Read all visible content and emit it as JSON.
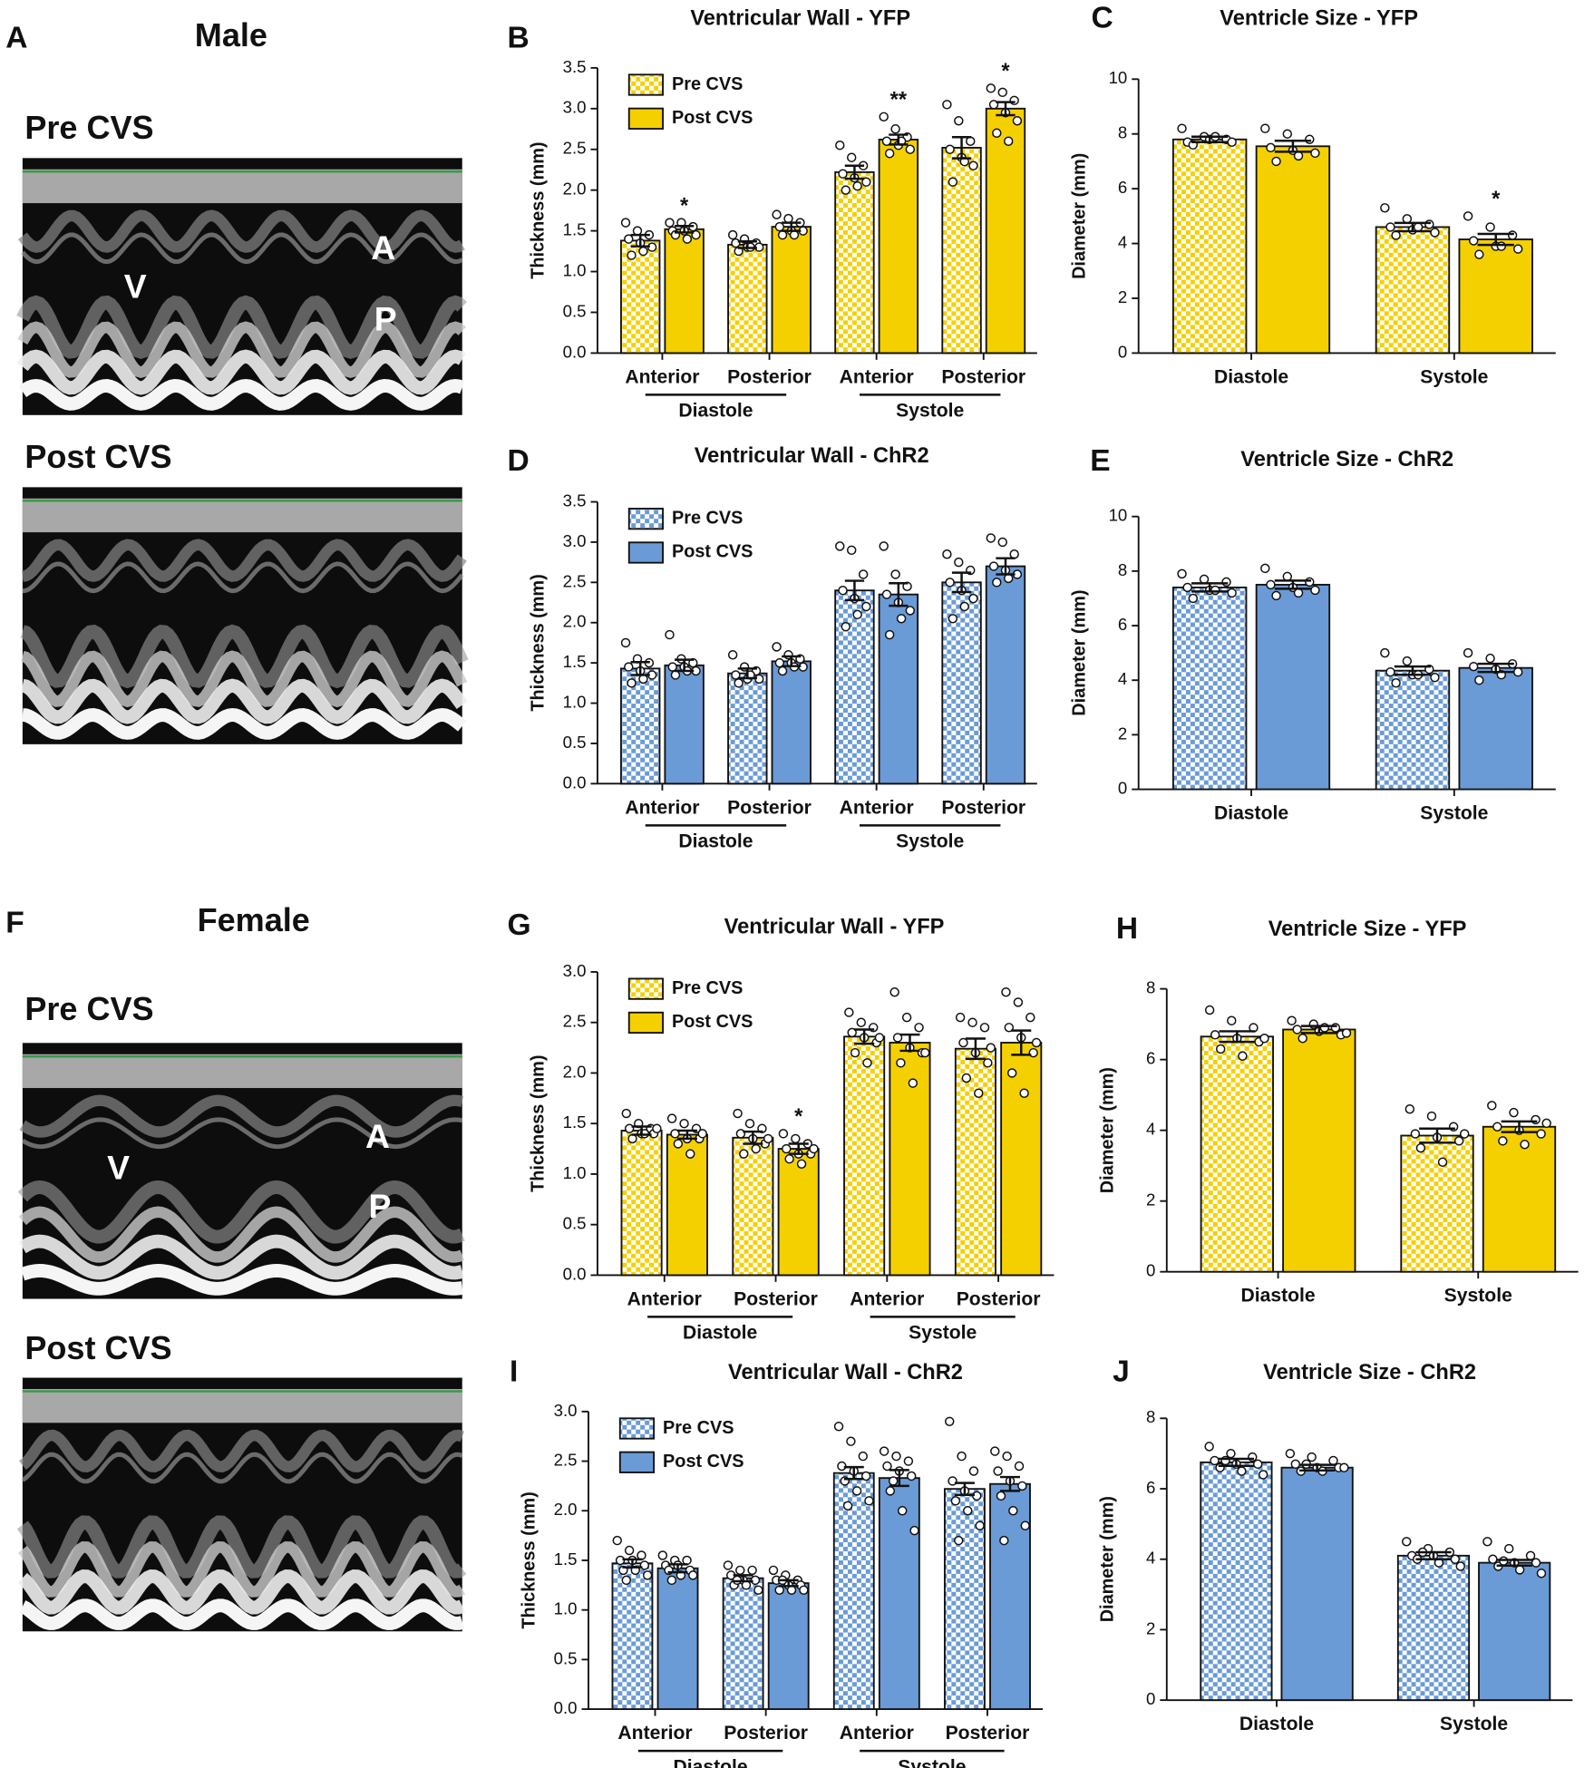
{
  "figures": {
    "male": {
      "panel": "A",
      "title": "Male",
      "pre": "Pre CVS",
      "post": "Post CVS",
      "markers": [
        "V",
        "A",
        "P"
      ]
    },
    "female": {
      "panel": "F",
      "title": "Female",
      "pre": "Pre CVS",
      "post": "Post CVS",
      "markers": [
        "V",
        "A",
        "P"
      ]
    }
  },
  "chart_data": [
    {
      "type": "bar",
      "panel": "B",
      "title": "Ventricular Wall - YFP",
      "ylabel": "Thickness (mm)",
      "legend": "upper left",
      "categories": [
        "Anterior",
        "Posterior",
        "Anterior",
        "Posterior"
      ],
      "groups": [
        "Diastole",
        "Systole"
      ],
      "ylim": [
        0,
        3.5
      ],
      "yticks": [
        {
          "value": 0,
          "label": "0.0"
        },
        0.5,
        {
          "value": 1,
          "label": "1.0"
        },
        1.5,
        {
          "value": 2,
          "label": "2.0"
        },
        2.5,
        {
          "value": 3,
          "label": "3.0"
        },
        3.5
      ],
      "series": [
        {
          "name": "Pre CVS",
          "color": "#f5d000",
          "pattern": "checker",
          "values": [
            1.38,
            1.33,
            2.22,
            2.52
          ],
          "errors": [
            0.07,
            0.04,
            0.08,
            0.13
          ],
          "points": [
            [
              1.6,
              1.5,
              1.45,
              1.4,
              1.35,
              1.3,
              1.2,
              1.25
            ],
            [
              1.45,
              1.4,
              1.35,
              1.35,
              1.3,
              1.3,
              1.25,
              1.3
            ],
            [
              2.55,
              2.4,
              2.3,
              2.2,
              2.15,
              2.1,
              2.0,
              2.05
            ],
            [
              3.05,
              2.85,
              2.6,
              2.5,
              2.4,
              2.3,
              2.1,
              2.35
            ]
          ]
        },
        {
          "name": "Post CVS",
          "color": "#f5d000",
          "values": [
            1.52,
            1.55,
            2.62,
            3.0
          ],
          "errors": [
            0.04,
            0.05,
            0.06,
            0.08
          ],
          "annotations": [
            "*",
            null,
            "**",
            "*"
          ],
          "points": [
            [
              1.6,
              1.6,
              1.55,
              1.5,
              1.5,
              1.45,
              1.45,
              1.4
            ],
            [
              1.7,
              1.65,
              1.6,
              1.55,
              1.5,
              1.5,
              1.45,
              1.45
            ],
            [
              2.9,
              2.75,
              2.65,
              2.6,
              2.55,
              2.5,
              2.45,
              2.6
            ],
            [
              3.25,
              3.2,
              3.1,
              3.05,
              2.95,
              2.85,
              2.7,
              2.6
            ]
          ]
        }
      ]
    },
    {
      "type": "bar",
      "panel": "C",
      "title": "Ventricle Size - YFP",
      "ylabel": "Diameter (mm)",
      "categories": [
        "Diastole",
        "Systole"
      ],
      "ylim": [
        0,
        10
      ],
      "yticks": [
        0,
        2,
        4,
        6,
        8,
        10
      ],
      "series": [
        {
          "color": "#f5d000",
          "pattern": "checker",
          "values": [
            7.8,
            4.6
          ],
          "errors": [
            0.1,
            0.15
          ],
          "points": [
            [
              8.2,
              7.9,
              7.8,
              7.7,
              7.8,
              7.7,
              7.6,
              7.9
            ],
            [
              5.3,
              4.9,
              4.7,
              4.6,
              4.5,
              4.4,
              4.3,
              4.6
            ]
          ]
        },
        {
          "color": "#f5d000",
          "values": [
            7.55,
            4.15
          ],
          "errors": [
            0.2,
            0.2
          ],
          "annotations": [
            null,
            "*"
          ],
          "points": [
            [
              8.2,
              8.0,
              7.8,
              7.5,
              7.4,
              7.3,
              7.0,
              7.2
            ],
            [
              5.0,
              4.6,
              4.3,
              4.1,
              3.9,
              3.8,
              3.6,
              3.9
            ]
          ]
        }
      ]
    },
    {
      "type": "bar",
      "panel": "D",
      "title": "Ventricular Wall - ChR2",
      "ylabel": "Thickness (mm)",
      "legend": "upper left",
      "categories": [
        "Anterior",
        "Posterior",
        "Anterior",
        "Posterior"
      ],
      "groups": [
        "Diastole",
        "Systole"
      ],
      "ylim": [
        0,
        3.5
      ],
      "yticks": [
        {
          "value": 0,
          "label": "0.0"
        },
        0.5,
        {
          "value": 1,
          "label": "1.0"
        },
        1.5,
        {
          "value": 2,
          "label": "2.0"
        },
        2.5,
        {
          "value": 3,
          "label": "3.0"
        },
        3.5
      ],
      "series": [
        {
          "name": "Pre CVS",
          "color": "#6a9bd6",
          "pattern": "checker",
          "values": [
            1.43,
            1.37,
            2.4,
            2.5
          ],
          "errors": [
            0.08,
            0.06,
            0.12,
            0.12
          ],
          "points": [
            [
              1.75,
              1.55,
              1.5,
              1.45,
              1.4,
              1.35,
              1.25,
              1.3
            ],
            [
              1.6,
              1.45,
              1.4,
              1.35,
              1.3,
              1.3,
              1.25,
              1.35
            ],
            [
              2.95,
              2.9,
              2.6,
              2.4,
              2.3,
              2.2,
              1.95,
              2.1
            ],
            [
              2.85,
              2.75,
              2.65,
              2.5,
              2.4,
              2.3,
              2.05,
              2.2
            ]
          ]
        },
        {
          "name": "Post CVS",
          "color": "#6a9bd6",
          "values": [
            1.47,
            1.52,
            2.35,
            2.7
          ],
          "errors": [
            0.07,
            0.06,
            0.14,
            0.1
          ],
          "points": [
            [
              1.85,
              1.55,
              1.5,
              1.45,
              1.45,
              1.4,
              1.35,
              1.4
            ],
            [
              1.7,
              1.6,
              1.55,
              1.5,
              1.5,
              1.45,
              1.4,
              1.45
            ],
            [
              2.95,
              2.6,
              2.45,
              2.35,
              2.25,
              2.15,
              1.85,
              2.05
            ],
            [
              3.05,
              3.0,
              2.85,
              2.7,
              2.65,
              2.6,
              2.5,
              2.55
            ]
          ]
        }
      ]
    },
    {
      "type": "bar",
      "panel": "E",
      "title": "Ventricle Size - ChR2",
      "ylabel": "Diameter (mm)",
      "categories": [
        "Diastole",
        "Systole"
      ],
      "ylim": [
        0,
        10
      ],
      "yticks": [
        0,
        2,
        4,
        6,
        8,
        10
      ],
      "series": [
        {
          "color": "#6a9bd6",
          "pattern": "checker",
          "values": [
            7.4,
            4.35
          ],
          "errors": [
            0.15,
            0.15
          ],
          "points": [
            [
              7.9,
              7.7,
              7.6,
              7.4,
              7.3,
              7.2,
              7.0,
              7.3
            ],
            [
              5.0,
              4.7,
              4.4,
              4.3,
              4.2,
              4.1,
              3.9,
              4.2
            ]
          ]
        },
        {
          "color": "#6a9bd6",
          "values": [
            7.5,
            4.45
          ],
          "errors": [
            0.15,
            0.15
          ],
          "points": [
            [
              8.1,
              7.8,
              7.6,
              7.5,
              7.4,
              7.3,
              7.1,
              7.2
            ],
            [
              5.0,
              4.8,
              4.6,
              4.5,
              4.4,
              4.3,
              4.0,
              4.2
            ]
          ]
        }
      ]
    },
    {
      "type": "bar",
      "panel": "G",
      "title": "Ventricular Wall - YFP",
      "ylabel": "Thickness (mm)",
      "legend": "upper left",
      "categories": [
        "Anterior",
        "Posterior",
        "Anterior",
        "Posterior"
      ],
      "groups": [
        "Diastole",
        "Systole"
      ],
      "ylim": [
        0,
        3
      ],
      "yticks": [
        {
          "value": 0,
          "label": "0.0"
        },
        0.5,
        {
          "value": 1,
          "label": "1.0"
        },
        1.5,
        {
          "value": 2,
          "label": "2.0"
        },
        2.5,
        {
          "value": 3,
          "label": "3.0"
        }
      ],
      "series": [
        {
          "name": "Pre CVS",
          "color": "#f5d000",
          "pattern": "checker",
          "values": [
            1.43,
            1.36,
            2.36,
            2.24
          ],
          "errors": [
            0.04,
            0.06,
            0.07,
            0.1
          ],
          "points": [
            [
              1.6,
              1.5,
              1.45,
              1.45,
              1.4,
              1.4,
              1.35,
              1.4,
              1.45
            ],
            [
              1.6,
              1.5,
              1.45,
              1.4,
              1.35,
              1.3,
              1.2,
              1.25,
              1.35
            ],
            [
              2.6,
              2.5,
              2.45,
              2.4,
              2.35,
              2.3,
              2.2,
              2.1,
              2.35
            ],
            [
              2.55,
              2.5,
              2.45,
              2.3,
              2.2,
              2.1,
              1.95,
              1.8,
              2.25
            ]
          ]
        },
        {
          "name": "Post CVS",
          "color": "#f5d000",
          "values": [
            1.39,
            1.25,
            2.3,
            2.3
          ],
          "errors": [
            0.04,
            0.05,
            0.08,
            0.12
          ],
          "annotations": [
            null,
            "*",
            null,
            null
          ],
          "points": [
            [
              1.55,
              1.5,
              1.45,
              1.4,
              1.35,
              1.35,
              1.3,
              1.2,
              1.4
            ],
            [
              1.4,
              1.35,
              1.3,
              1.25,
              1.2,
              1.2,
              1.15,
              1.1,
              1.25
            ],
            [
              2.8,
              2.55,
              2.45,
              2.35,
              2.25,
              2.2,
              2.1,
              1.9,
              2.2
            ],
            [
              2.8,
              2.7,
              2.55,
              2.45,
              2.35,
              2.2,
              2.0,
              1.8,
              2.3
            ]
          ]
        }
      ]
    },
    {
      "type": "bar",
      "panel": "H",
      "title": "Ventricle Size - YFP",
      "ylabel": "Diameter (mm)",
      "categories": [
        "Diastole",
        "Systole"
      ],
      "ylim": [
        0,
        8
      ],
      "yticks": [
        0,
        2,
        4,
        6,
        8
      ],
      "series": [
        {
          "color": "#f5d000",
          "pattern": "checker",
          "values": [
            6.65,
            3.85
          ],
          "errors": [
            0.15,
            0.2
          ],
          "points": [
            [
              7.4,
              7.1,
              6.9,
              6.7,
              6.6,
              6.5,
              6.3,
              6.1,
              6.6
            ],
            [
              4.6,
              4.4,
              4.1,
              3.9,
              3.8,
              3.7,
              3.5,
              3.1,
              3.9
            ]
          ]
        },
        {
          "color": "#f5d000",
          "values": [
            6.85,
            4.1
          ],
          "errors": [
            0.1,
            0.15
          ],
          "points": [
            [
              7.1,
              7.0,
              6.9,
              6.85,
              6.8,
              6.7,
              6.6,
              6.9,
              6.75
            ],
            [
              4.7,
              4.5,
              4.3,
              4.1,
              4.0,
              3.9,
              3.7,
              3.6,
              4.2
            ]
          ]
        }
      ]
    },
    {
      "type": "bar",
      "panel": "I",
      "title": "Ventricular Wall - ChR2",
      "ylabel": "Thickness (mm)",
      "legend": "upper left",
      "categories": [
        "Anterior",
        "Posterior",
        "Anterior",
        "Posterior"
      ],
      "groups": [
        "Diastole",
        "Systole"
      ],
      "ylim": [
        0,
        3
      ],
      "yticks": [
        {
          "value": 0,
          "label": "0.0"
        },
        0.5,
        {
          "value": 1,
          "label": "1.0"
        },
        1.5,
        {
          "value": 2,
          "label": "2.0"
        },
        2.5,
        {
          "value": 3,
          "label": "3.0"
        }
      ],
      "series": [
        {
          "name": "Pre CVS",
          "color": "#6a9bd6",
          "pattern": "checker",
          "values": [
            1.47,
            1.32,
            2.38,
            2.22
          ],
          "errors": [
            0.04,
            0.03,
            0.06,
            0.06
          ],
          "points": [
            [
              1.7,
              1.6,
              1.55,
              1.5,
              1.5,
              1.45,
              1.4,
              1.4,
              1.35,
              1.3
            ],
            [
              1.45,
              1.4,
              1.4,
              1.35,
              1.3,
              1.3,
              1.25,
              1.25,
              1.2,
              1.3
            ],
            [
              2.85,
              2.7,
              2.55,
              2.45,
              2.4,
              2.35,
              2.3,
              2.2,
              2.1,
              2.05
            ],
            [
              2.9,
              2.55,
              2.4,
              2.3,
              2.2,
              2.15,
              2.1,
              2.0,
              1.85,
              1.7
            ]
          ]
        },
        {
          "name": "Post CVS",
          "color": "#6a9bd6",
          "values": [
            1.42,
            1.27,
            2.33,
            2.27
          ],
          "errors": [
            0.04,
            0.03,
            0.08,
            0.07
          ],
          "points": [
            [
              1.55,
              1.5,
              1.5,
              1.45,
              1.45,
              1.4,
              1.4,
              1.35,
              1.35,
              1.3
            ],
            [
              1.4,
              1.35,
              1.3,
              1.3,
              1.25,
              1.25,
              1.2,
              1.2,
              1.2,
              1.3
            ],
            [
              2.6,
              2.55,
              2.5,
              2.45,
              2.4,
              2.35,
              2.2,
              2.0,
              1.8,
              2.3
            ],
            [
              2.6,
              2.55,
              2.45,
              2.4,
              2.3,
              2.25,
              2.15,
              2.0,
              1.85,
              1.7
            ]
          ]
        }
      ]
    },
    {
      "type": "bar",
      "panel": "J",
      "title": "Ventricle Size - ChR2",
      "ylabel": "Diameter (mm)",
      "categories": [
        "Diastole",
        "Systole"
      ],
      "ylim": [
        0,
        8
      ],
      "yticks": [
        0,
        2,
        4,
        6,
        8
      ],
      "series": [
        {
          "color": "#6a9bd6",
          "pattern": "checker",
          "values": [
            6.75,
            4.1
          ],
          "errors": [
            0.1,
            0.1
          ],
          "points": [
            [
              7.2,
              7.0,
              6.9,
              6.8,
              6.7,
              6.7,
              6.6,
              6.5,
              6.4,
              6.8
            ],
            [
              4.5,
              4.3,
              4.2,
              4.1,
              4.1,
              4.0,
              4.0,
              3.9,
              3.8,
              4.2
            ]
          ]
        },
        {
          "color": "#6a9bd6",
          "values": [
            6.6,
            3.9
          ],
          "errors": [
            0.08,
            0.08
          ],
          "points": [
            [
              7.0,
              6.9,
              6.8,
              6.7,
              6.6,
              6.6,
              6.5,
              6.5,
              6.6,
              6.7
            ],
            [
              4.5,
              4.3,
              4.1,
              4.0,
              3.9,
              3.9,
              3.8,
              3.7,
              3.6,
              3.95
            ]
          ]
        }
      ]
    }
  ]
}
